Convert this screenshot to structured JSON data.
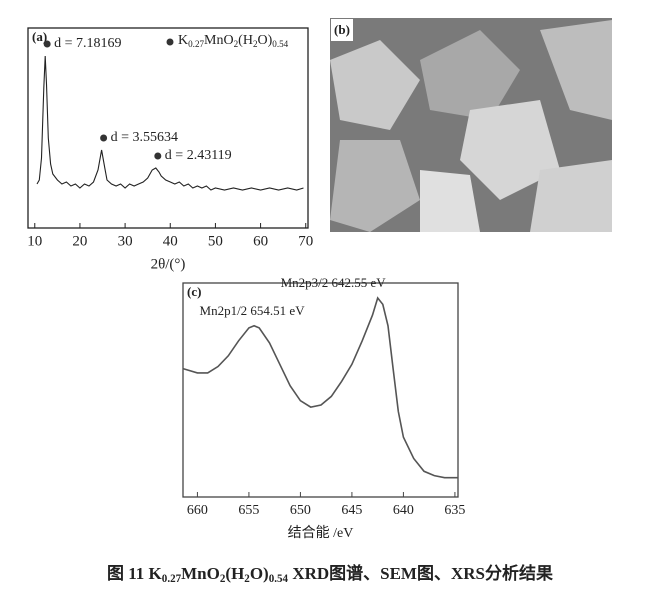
{
  "chart_data": [
    {
      "type": "line",
      "panel_label": "(a)",
      "x_label": "2θ/(°)",
      "x": [
        10.5,
        11,
        11.5,
        12,
        12.3,
        12.6,
        13,
        13.5,
        14,
        15,
        16,
        17,
        18,
        19,
        20,
        21,
        22,
        23,
        24,
        24.8,
        25.5,
        26,
        27,
        28,
        29,
        30,
        31,
        32,
        33,
        34,
        35,
        36,
        36.8,
        37.5,
        38,
        39,
        40,
        41,
        42,
        43,
        44,
        45,
        46,
        47,
        48,
        49,
        50,
        52,
        54,
        56,
        58,
        60,
        62,
        64,
        66,
        68,
        69.5
      ],
      "series": [
        {
          "name": "K0.27MnO2(H2O)0.54",
          "color": "#222222",
          "values": [
            22,
            24,
            35,
            70,
            86,
            72,
            45,
            32,
            27,
            24,
            22,
            23,
            21,
            22,
            20,
            22,
            21,
            23,
            29,
            39,
            30,
            24,
            22,
            21,
            22,
            20,
            22,
            21,
            22,
            23,
            25,
            29,
            30,
            28,
            26,
            24,
            23,
            22,
            23,
            21,
            22,
            20,
            21,
            20,
            21,
            19,
            20,
            19,
            20,
            19,
            20,
            19,
            20,
            19,
            20,
            19,
            20
          ]
        }
      ],
      "annotations": [
        {
          "text": "d = 7.18169",
          "x": 12.3,
          "y": 86
        },
        {
          "text": "d = 3.55634",
          "x": 24.8,
          "y": 39
        },
        {
          "text": "d = 2.43119",
          "x": 36.8,
          "y": 30
        }
      ],
      "xlim": [
        8.5,
        70.5
      ],
      "ylim": [
        0,
        100
      ],
      "xticks": [
        10,
        20,
        30,
        40,
        50,
        60,
        70
      ],
      "legend": "upper right"
    },
    {
      "type": "line",
      "panel_label": "(c)",
      "x_label": "结合能 /eV",
      "x": [
        661.4,
        660,
        659,
        658,
        657,
        656,
        655,
        654.5,
        654,
        653,
        652,
        651,
        650,
        649,
        648,
        647,
        646,
        645,
        644,
        643,
        642.5,
        642,
        641.5,
        641,
        640.5,
        640,
        639,
        638,
        637,
        636,
        635,
        634.7
      ],
      "series": [
        {
          "color": "#555555",
          "values": [
            60,
            58,
            58,
            61,
            66,
            73,
            79,
            80,
            79,
            72,
            62,
            52,
            45,
            42,
            43,
            47,
            54,
            62,
            73,
            85,
            93,
            90,
            80,
            60,
            40,
            28,
            18,
            12,
            10,
            9,
            9,
            9
          ]
        }
      ],
      "annotations": [
        {
          "text": "Mn2p3/2  642.55 eV",
          "x": 642.5,
          "y": 93
        },
        {
          "text": "Mn2p1/2  654.51 eV",
          "x": 654.5,
          "y": 80
        }
      ],
      "xlim": [
        661.4,
        634.7
      ],
      "ylim": [
        0,
        100
      ],
      "xticks": [
        660,
        655,
        650,
        645,
        640,
        635
      ]
    }
  ],
  "sem_panel": {
    "label": "(b)"
  },
  "caption": "图 11 K0.27MnO2(H2O)0.54 XRD图谱、SEM图、XRS分析结果"
}
